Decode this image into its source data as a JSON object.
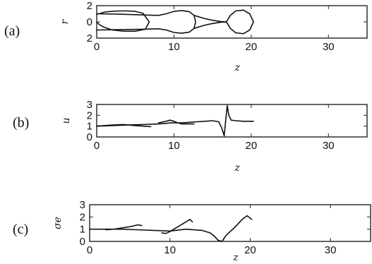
{
  "chart_data": [
    {
      "id": "a",
      "type": "line",
      "panel_label": "(a)",
      "xlabel": "z",
      "ylabel": "r",
      "xlim": [
        0,
        35
      ],
      "ylim": [
        -2,
        2
      ],
      "xticks": [
        "0",
        "10",
        "20",
        "30"
      ],
      "yticks": [
        "2",
        "0",
        "2"
      ],
      "ytick_values": [
        2,
        0,
        -2
      ],
      "series": [
        {
          "x": [
            0,
            0.5,
            1,
            2,
            3,
            4,
            5,
            6,
            6.8,
            6.3,
            5,
            3.5,
            2,
            0.8,
            0.3,
            0
          ],
          "y": [
            0.95,
            1.05,
            1.2,
            1.3,
            1.35,
            1.35,
            1.3,
            1.05,
            0,
            -0.9,
            -1.15,
            -1.15,
            -1.0,
            -0.6,
            -0.3,
            0
          ]
        },
        {
          "x": [
            0,
            3,
            6,
            8,
            9,
            10,
            11,
            12,
            12.6,
            12.8,
            12.6,
            12,
            11,
            10,
            9,
            8,
            6,
            3,
            0
          ],
          "y": [
            1.0,
            0.95,
            0.85,
            0.8,
            1.0,
            1.3,
            1.4,
            1.25,
            0.8,
            0,
            -0.8,
            -1.25,
            -1.4,
            -1.3,
            -1.0,
            -0.85,
            -0.9,
            -0.95,
            -1.0
          ]
        },
        {
          "x": [
            12.6,
            14,
            15,
            16,
            16.8
          ],
          "y": [
            0.8,
            0.4,
            0.2,
            0.05,
            0
          ]
        },
        {
          "x": [
            12.6,
            14,
            15,
            16,
            16.8
          ],
          "y": [
            -0.8,
            -0.4,
            -0.2,
            -0.05,
            0
          ]
        },
        {
          "x": [
            16.8,
            17.3,
            18,
            19,
            19.8,
            20.3,
            19.8,
            19,
            18,
            17.3,
            16.8
          ],
          "y": [
            0,
            0.8,
            1.35,
            1.45,
            1.0,
            0,
            -1.0,
            -1.45,
            -1.35,
            -0.8,
            0
          ]
        }
      ]
    },
    {
      "id": "b",
      "type": "line",
      "panel_label": "(b)",
      "xlabel": "z",
      "ylabel": "u",
      "xlim": [
        0,
        35
      ],
      "ylim": [
        0,
        3
      ],
      "xticks": [
        "0",
        "10",
        "20",
        "30"
      ],
      "yticks": [
        "3",
        "2",
        "1",
        "0"
      ],
      "ytick_values": [
        3,
        2,
        1,
        0
      ],
      "series": [
        {
          "x": [
            0,
            2,
            4,
            6,
            8,
            9,
            9.5,
            10,
            11,
            12,
            13,
            14,
            15,
            15.8,
            16.2,
            16.5,
            16.7,
            16.9,
            17.1,
            17.4,
            18,
            19,
            20.3
          ],
          "y": [
            1.0,
            1.05,
            1.1,
            1.15,
            1.2,
            1.25,
            1.3,
            1.3,
            1.3,
            1.35,
            1.4,
            1.45,
            1.5,
            1.4,
            0.8,
            0.1,
            1.5,
            2.9,
            2.0,
            1.55,
            1.5,
            1.45,
            1.45
          ]
        },
        {
          "x": [
            0,
            2,
            3.5,
            5,
            6,
            7
          ],
          "y": [
            1.0,
            1.1,
            1.15,
            1.05,
            1.0,
            0.95
          ]
        },
        {
          "x": [
            8,
            9,
            9.5,
            10,
            10.5,
            11,
            12,
            12.6
          ],
          "y": [
            1.3,
            1.45,
            1.55,
            1.45,
            1.3,
            1.2,
            1.2,
            1.2
          ]
        }
      ]
    },
    {
      "id": "c",
      "type": "line",
      "panel_label": "(c)",
      "xlabel": "z",
      "ylabel": "σe",
      "xlim": [
        0,
        35
      ],
      "ylim": [
        0,
        3
      ],
      "xticks": [
        "0",
        "10",
        "20",
        "30"
      ],
      "yticks": [
        "3",
        "2",
        "1",
        "0"
      ],
      "ytick_values": [
        3,
        2,
        1,
        0
      ],
      "series": [
        {
          "x": [
            0,
            2,
            4,
            6,
            8,
            10,
            12,
            14,
            15,
            15.5,
            16,
            16.5,
            17,
            18,
            19,
            19.6,
            20.2
          ],
          "y": [
            1.0,
            1.0,
            1.0,
            0.95,
            0.9,
            0.85,
            1.0,
            0.9,
            0.7,
            0.45,
            0.1,
            0.0,
            0.5,
            1.1,
            1.8,
            2.1,
            1.8
          ]
        },
        {
          "x": [
            2,
            3,
            4,
            5,
            6,
            6.5
          ],
          "y": [
            0.95,
            1.0,
            1.1,
            1.2,
            1.35,
            1.3
          ]
        },
        {
          "x": [
            9,
            9.5,
            10,
            11,
            12,
            12.5,
            12.8
          ],
          "y": [
            0.7,
            0.65,
            0.8,
            1.2,
            1.6,
            1.8,
            1.6
          ]
        }
      ]
    }
  ]
}
